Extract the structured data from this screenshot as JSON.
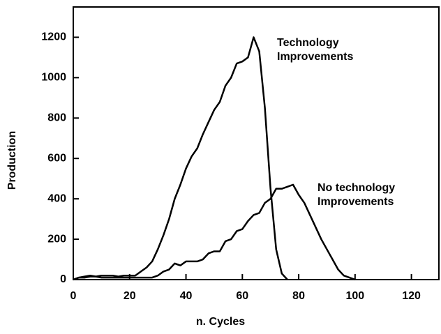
{
  "chart_data": {
    "type": "line",
    "x_label": "n. Cycles",
    "y_label": "Production",
    "x": [
      0,
      2,
      4,
      6,
      8,
      10,
      12,
      14,
      16,
      18,
      20,
      22,
      24,
      26,
      28,
      30,
      32,
      34,
      36,
      38,
      40,
      42,
      44,
      46,
      48,
      50,
      52,
      54,
      56,
      58,
      60,
      62,
      64,
      66,
      68,
      70,
      72,
      74,
      76,
      78,
      80,
      82,
      84,
      86,
      88,
      90,
      92,
      94,
      96,
      98,
      100
    ],
    "series": [
      {
        "name": "Technology Improvements",
        "color": "#000000",
        "values": [
          0,
          10,
          15,
          20,
          15,
          20,
          20,
          20,
          15,
          20,
          20,
          20,
          40,
          60,
          90,
          150,
          220,
          300,
          400,
          470,
          550,
          610,
          650,
          720,
          780,
          840,
          880,
          960,
          1000,
          1070,
          1080,
          1100,
          1200,
          1130,
          850,
          450,
          150,
          30,
          0,
          null,
          null,
          null,
          null,
          null,
          null,
          null,
          null,
          null,
          null,
          null,
          null
        ]
      },
      {
        "name": "No technology Improvements",
        "color": "#000000",
        "values": [
          0,
          10,
          10,
          15,
          15,
          10,
          10,
          10,
          10,
          10,
          10,
          10,
          10,
          10,
          10,
          20,
          40,
          50,
          80,
          70,
          90,
          90,
          90,
          100,
          130,
          140,
          140,
          190,
          200,
          240,
          250,
          290,
          320,
          330,
          380,
          400,
          450,
          450,
          460,
          470,
          420,
          380,
          320,
          260,
          200,
          150,
          100,
          50,
          20,
          10,
          0
        ]
      }
    ],
    "xlim": [
      0,
      130
    ],
    "xticks": [
      0,
      20,
      40,
      60,
      80,
      100,
      120
    ],
    "ylim": [
      0,
      1350
    ],
    "yticks": [
      0,
      200,
      400,
      600,
      800,
      1000,
      1200
    ]
  }
}
